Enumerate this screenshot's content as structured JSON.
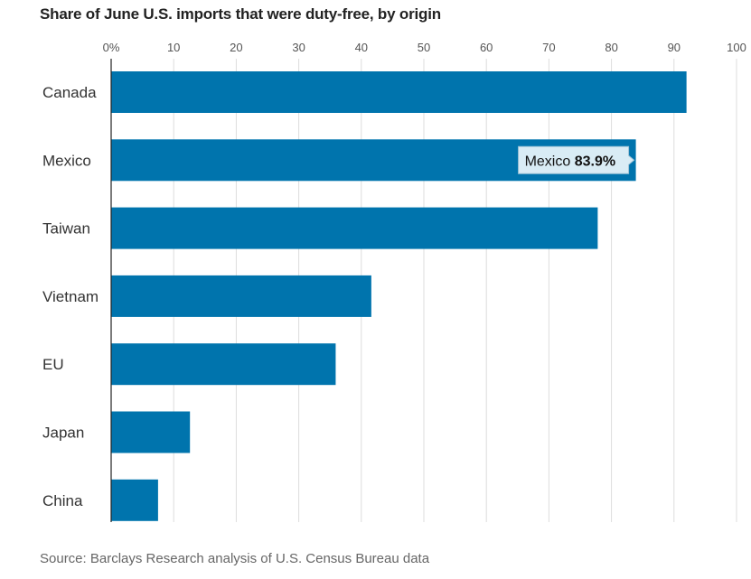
{
  "chart_data": {
    "type": "bar",
    "orientation": "horizontal",
    "title": "Share of June U.S. imports that were duty-free, by origin",
    "source": "Source: Barclays Research analysis of U.S. Census Bureau data",
    "categories": [
      "Canada",
      "Mexico",
      "Taiwan",
      "Vietnam",
      "EU",
      "Japan",
      "China"
    ],
    "values": [
      92,
      83.9,
      77.8,
      41.6,
      35.9,
      12.6,
      7.5
    ],
    "unit": "%",
    "xlim": [
      0,
      100
    ],
    "xticks": [
      0,
      10,
      20,
      30,
      40,
      50,
      60,
      70,
      80,
      90,
      100
    ],
    "xtick_labels": [
      "0%",
      "10",
      "20",
      "30",
      "40",
      "50",
      "60",
      "70",
      "80",
      "90",
      "100"
    ],
    "grid": true,
    "bar_color": "#0074ad",
    "annotation": {
      "category": "Mexico",
      "label": "Mexico",
      "value_text": "83.9%"
    }
  }
}
